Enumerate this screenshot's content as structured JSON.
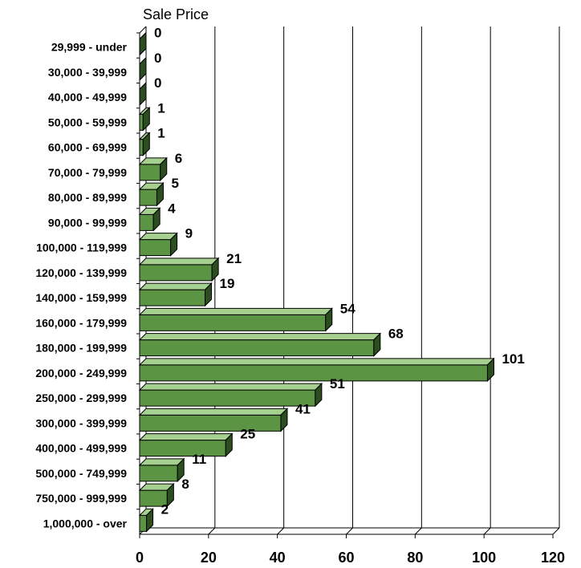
{
  "chart_data": {
    "type": "bar",
    "orientation": "horizontal",
    "title": "Sale Price",
    "categories": [
      "29,999 - under",
      "30,000 - 39,999",
      "40,000 - 49,999",
      "50,000 - 59,999",
      "60,000 - 69,999",
      "70,000 - 79,999",
      "80,000 - 89,999",
      "90,000 - 99,999",
      "100,000 - 119,999",
      "120,000 - 139,999",
      "140,000 - 159,999",
      "160,000 - 179,999",
      "180,000 - 199,999",
      "200,000 - 249,999",
      "250,000 - 299,999",
      "300,000 - 399,999",
      "400,000 - 499,999",
      "500,000 - 749,999",
      "750,000 - 999,999",
      "1,000,000 - over"
    ],
    "values": [
      0,
      0,
      0,
      1,
      1,
      6,
      5,
      4,
      9,
      21,
      19,
      54,
      68,
      101,
      51,
      41,
      25,
      11,
      8,
      2
    ],
    "xlim": [
      0,
      120
    ],
    "xticks": [
      0,
      20,
      40,
      60,
      80,
      100,
      120
    ],
    "grid": "vertical",
    "legend": "none",
    "colors": {
      "bar_face": "#5b9543",
      "bar_top": "#a6d08f",
      "bar_side": "#2b4d1f",
      "outline": "#000000",
      "grid": "#000000"
    }
  }
}
